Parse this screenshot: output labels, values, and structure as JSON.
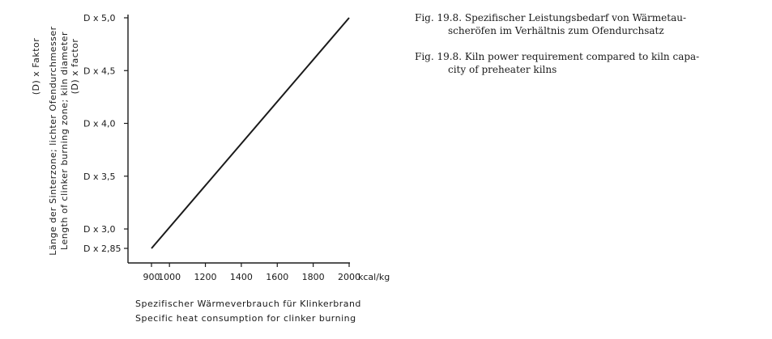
{
  "chart_data": {
    "type": "line",
    "xlabel": [
      "Spezifischer Wärmeverbrauch für Klinkerbrand",
      "Specific heat consumption for clinker burning"
    ],
    "x_unit": "kcal/kg",
    "ylabel": [
      "Länge der Sinterzone; lichter Ofendurchmesser",
      "Length of clinker burning zone; kiln diameter",
      "(D) x Faktor",
      "(D) x factor"
    ],
    "xlim": [
      850,
      2000
    ],
    "ylim": [
      2.85,
      5.0
    ],
    "x_ticks": [
      900,
      1000,
      1200,
      1400,
      1600,
      1800,
      2000
    ],
    "x_tick_labels": [
      "900",
      "1000",
      "1200",
      "1400",
      "1600",
      "1800",
      "2000"
    ],
    "y_ticks": [
      2.85,
      3.0,
      3.5,
      4.0,
      4.5,
      5.0
    ],
    "y_tick_labels": [
      "D x 2,85",
      "D x 3,0",
      "D x 3,5",
      "D x 4,0",
      "D x 4,5",
      "D x 5,0"
    ],
    "grid": false,
    "series": [
      {
        "x": [
          900,
          2000
        ],
        "y": [
          2.85,
          5.0
        ]
      }
    ]
  },
  "captions": {
    "de": {
      "fig": "Fig. 19.8.",
      "line1": "Spezifischer Leistungsbedarf von Wärmetau-",
      "line2": "scheröfen im Verhältnis zum Ofendurchsatz"
    },
    "en": {
      "fig": "Fig. 19.8.",
      "line1": "Kiln power requirement compared to kiln capa-",
      "line2": "city of preheater kilns"
    }
  }
}
